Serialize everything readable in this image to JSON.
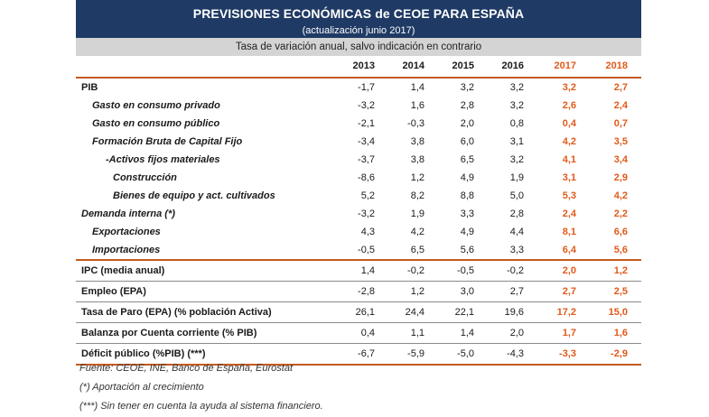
{
  "title": "PREVISIONES ECONÓMICAS de CEOE PARA ESPAÑA",
  "subtitle": "(actualización junio 2017)",
  "unit_note": "Tasa de variación anual, salvo indicación en contrario",
  "years": [
    "2013",
    "2014",
    "2015",
    "2016",
    "2017",
    "2018"
  ],
  "forecast_color": "#e05a1a",
  "header_color": "#1f3a64",
  "rows_group1": [
    {
      "label": "PIB",
      "level": "lvl0",
      "values": [
        "-1,7",
        "1,4",
        "3,2",
        "3,2",
        "3,2",
        "2,7"
      ]
    },
    {
      "label": "Gasto en consumo privado",
      "level": "indent1",
      "values": [
        "-3,2",
        "1,6",
        "2,8",
        "3,2",
        "2,6",
        "2,4"
      ]
    },
    {
      "label": "Gasto en consumo público",
      "level": "indent1",
      "values": [
        "-2,1",
        "-0,3",
        "2,0",
        "0,8",
        "0,4",
        "0,7"
      ]
    },
    {
      "label": "Formación Bruta de Capital Fijo",
      "level": "indent1",
      "values": [
        "-3,4",
        "3,8",
        "6,0",
        "3,1",
        "4,2",
        "3,5"
      ]
    },
    {
      "label": "-Activos fijos materiales",
      "level": "indent2",
      "values": [
        "-3,7",
        "3,8",
        "6,5",
        "3,2",
        "4,1",
        "3,4"
      ]
    },
    {
      "label": "Construcción",
      "level": "indent3",
      "values": [
        "-8,6",
        "1,2",
        "4,9",
        "1,9",
        "3,1",
        "2,9"
      ]
    },
    {
      "label": "Bienes de equipo y act. cultivados",
      "level": "indent3",
      "values": [
        "5,2",
        "8,2",
        "8,8",
        "5,0",
        "5,3",
        "4,2"
      ]
    },
    {
      "label": "Demanda interna (*)",
      "level": "lvl0i",
      "values": [
        "-3,2",
        "1,9",
        "3,3",
        "2,8",
        "2,4",
        "2,2"
      ]
    },
    {
      "label": "Exportaciones",
      "level": "indent1",
      "values": [
        "4,3",
        "4,2",
        "4,9",
        "4,4",
        "8,1",
        "6,6"
      ]
    },
    {
      "label": "Importaciones",
      "level": "indent1",
      "values": [
        "-0,5",
        "6,5",
        "5,6",
        "3,3",
        "6,4",
        "5,6"
      ]
    }
  ],
  "rows_group2": [
    {
      "label": "IPC (media anual)",
      "level": "lvl0",
      "values": [
        "1,4",
        "-0,2",
        "-0,5",
        "-0,2",
        "2,0",
        "1,2"
      ]
    },
    {
      "label": "Empleo (EPA)",
      "level": "lvl0",
      "values": [
        "-2,8",
        "1,2",
        "3,0",
        "2,7",
        "2,7",
        "2,5"
      ]
    },
    {
      "label": "Tasa de Paro (EPA) (% población Activa)",
      "level": "lvl0",
      "values": [
        "26,1",
        "24,4",
        "22,1",
        "19,6",
        "17,2",
        "15,0"
      ]
    },
    {
      "label": "Balanza por Cuenta corriente (% PIB)",
      "level": "lvl0",
      "values": [
        "0,4",
        "1,1",
        "1,4",
        "2,0",
        "1,7",
        "1,6"
      ]
    },
    {
      "label": "Déficit público (%PIB)  (***)",
      "level": "lvl0",
      "values": [
        "-6,7",
        "-5,9",
        "-5,0",
        "-4,3",
        "-3,3",
        "-2,9"
      ]
    }
  ],
  "notes": [
    "Fuente: CEOE, INE, Banco de España, Eurostat",
    "(*) Aportación al crecimiento",
    "(***) Sin tener en cuenta la ayuda al sistema financiero."
  ]
}
